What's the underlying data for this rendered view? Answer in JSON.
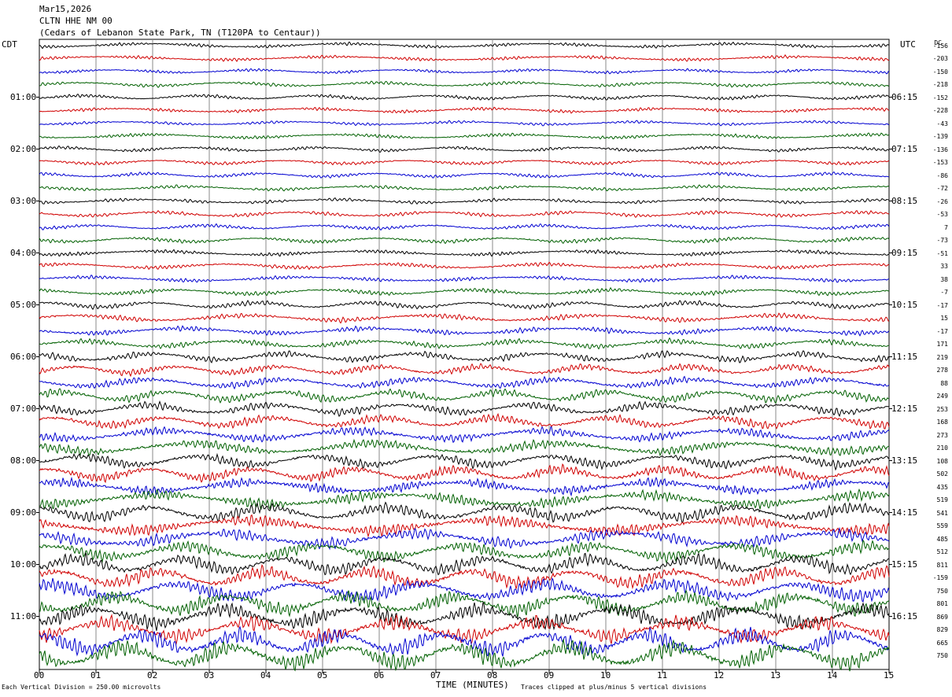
{
  "header": {
    "date": "Mar15,2026",
    "station": "CLTN HHE NM 00",
    "location": "(Cedars of Lebanon State Park, TN (T120PA to Centaur))"
  },
  "chart_data": {
    "type": "line",
    "title": "Mar15,2026 CLTN HHE NM 00",
    "left_axis_label": "CDT",
    "right_axis_label": "UTC",
    "dc_label": "DC",
    "xlabel": "TIME (MINUTES)",
    "x_ticks": [
      "00",
      "01",
      "02",
      "03",
      "04",
      "05",
      "06",
      "07",
      "08",
      "09",
      "10",
      "11",
      "12",
      "13",
      "14",
      "15"
    ],
    "xlim": [
      0,
      15
    ],
    "grid": true,
    "left_hour_labels": [
      "01:00",
      "02:00",
      "03:00",
      "04:00",
      "05:00",
      "06:00",
      "07:00",
      "08:00",
      "09:00",
      "10:00",
      "11:00"
    ],
    "right_hour_labels": [
      "06:15",
      "07:15",
      "08:15",
      "09:15",
      "10:15",
      "11:15",
      "12:15",
      "13:15",
      "14:15",
      "15:15",
      "16:15"
    ],
    "trace_colors": [
      "#000000",
      "#d00000",
      "#0000d0",
      "#006000"
    ],
    "trace_count": 48,
    "dc_offsets": [
      "-156",
      "-203",
      "-150",
      "-218",
      "-152",
      "-228",
      "-43",
      "-139",
      "-136",
      "-153",
      "-86",
      "-72",
      "-26",
      "-53",
      "7",
      "-73",
      "-51",
      "33",
      "38",
      "-7",
      "-17",
      "15",
      "-17",
      "171",
      "219",
      "278",
      "88",
      "249",
      "253",
      "168",
      "273",
      "210",
      "108",
      "502",
      "435",
      "519",
      "541",
      "559",
      "485",
      "512",
      "811",
      "-159",
      "750",
      "801",
      "869",
      "829",
      "665",
      "750"
    ],
    "trace_amplitudes": [
      0.35,
      0.35,
      0.3,
      0.35,
      0.35,
      0.35,
      0.3,
      0.35,
      0.35,
      0.35,
      0.35,
      0.35,
      0.35,
      0.4,
      0.35,
      0.4,
      0.4,
      0.4,
      0.4,
      0.45,
      0.5,
      0.55,
      0.55,
      0.6,
      0.7,
      0.7,
      0.75,
      0.85,
      0.85,
      0.85,
      0.9,
      0.95,
      0.95,
      1.0,
      1.0,
      1.1,
      1.15,
      1.2,
      1.2,
      1.25,
      1.3,
      1.35,
      1.4,
      1.5,
      1.6,
      1.6,
      1.7,
      1.8
    ]
  },
  "footer": {
    "scale_note": "Each Vertical Division =  250.00 microvolts",
    "clip_note": "Traces clipped at plus/minus 5 vertical divisions"
  }
}
